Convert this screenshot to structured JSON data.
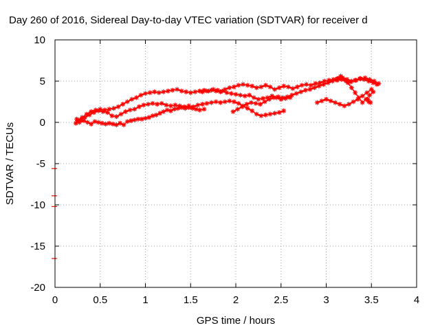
{
  "chart_data": {
    "type": "scatter",
    "title": "Day 260 of 2016, Sidereal Day-to-day VTEC variation (SDTVAR) for receiver d",
    "xlabel": "GPS time / hours",
    "ylabel": "SDTVAR / TECUs",
    "xlim": [
      0,
      4
    ],
    "ylim": [
      -20,
      10
    ],
    "xticks": [
      0,
      0.5,
      1,
      1.5,
      2,
      2.5,
      3,
      3.5,
      4
    ],
    "yticks": [
      -20,
      -15,
      -10,
      -5,
      0,
      5,
      10
    ],
    "grid": true,
    "grid_style": "dotted",
    "marker": "star",
    "series_color": "#ff0000",
    "series": [
      {
        "name": "",
        "x": [
          0.23,
          0.27,
          0.32,
          0.36,
          0.4,
          0.44,
          0.48,
          0.52,
          0.56,
          0.6,
          0.64,
          0.68,
          0.72,
          0.76,
          0.8,
          0.84,
          0.88,
          0.92,
          0.96,
          1.0,
          1.04,
          1.08,
          1.12,
          1.16,
          1.2,
          1.24,
          1.28,
          1.32,
          1.36,
          1.4,
          1.44,
          1.48,
          1.52,
          1.56,
          1.6,
          1.65
        ],
        "y": [
          -0.1,
          0.0,
          0.2,
          0.0,
          -0.2,
          0.1,
          0.0,
          -0.1,
          -0.2,
          -0.1,
          -0.2,
          -0.3,
          -0.1,
          -0.3,
          0.1,
          0.2,
          0.3,
          0.4,
          0.4,
          0.5,
          0.6,
          0.8,
          0.9,
          1.1,
          1.3,
          1.5,
          1.4,
          1.6,
          1.7,
          1.8,
          1.7,
          1.8,
          1.7,
          1.6,
          1.5,
          1.6
        ]
      },
      {
        "name": "",
        "x": [
          0.24,
          0.28,
          0.33,
          0.38,
          0.43,
          0.48,
          0.53,
          0.58,
          0.63,
          0.68,
          0.73,
          0.78,
          0.83,
          0.88,
          0.93,
          0.98,
          1.03,
          1.08,
          1.13,
          1.18,
          1.23,
          1.28,
          1.33,
          1.38,
          1.43,
          1.48,
          1.53,
          1.58,
          1.63,
          1.68,
          1.73,
          1.78,
          1.83,
          1.88,
          1.93,
          1.98,
          2.03,
          2.08,
          2.13,
          2.18,
          2.23,
          2.28,
          2.33,
          2.38,
          2.43,
          2.48,
          2.53
        ],
        "y": [
          0.4,
          0.3,
          0.6,
          0.9,
          1.2,
          1.4,
          1.3,
          1.2,
          0.8,
          0.7,
          1.0,
          1.3,
          1.5,
          1.6,
          1.9,
          2.1,
          2.2,
          2.3,
          2.2,
          2.3,
          2.1,
          2.0,
          2.1,
          2.0,
          1.9,
          2.0,
          1.9,
          2.1,
          2.2,
          2.3,
          2.4,
          2.5,
          2.4,
          2.5,
          2.6,
          2.5,
          2.3,
          2.0,
          1.7,
          1.4,
          1.0,
          0.8,
          0.9,
          1.0,
          1.1,
          1.2,
          1.4
        ]
      },
      {
        "name": "",
        "x": [
          0.25,
          0.3,
          0.35,
          0.4,
          0.45,
          0.5,
          0.55,
          0.6,
          0.65,
          0.7,
          0.75,
          0.8,
          0.85,
          0.9,
          0.95,
          1.0,
          1.05,
          1.1,
          1.15,
          1.2,
          1.25,
          1.3,
          1.35,
          1.4,
          1.45,
          1.5,
          1.55,
          1.6,
          1.65,
          1.7,
          1.75,
          1.8,
          1.85,
          1.9,
          1.95,
          2.0,
          2.05,
          2.1,
          2.15,
          2.2,
          2.25,
          2.3,
          2.35,
          2.4,
          2.45,
          2.5,
          2.55,
          2.6
        ],
        "y": [
          0.2,
          0.6,
          1.0,
          1.3,
          1.5,
          1.6,
          1.5,
          1.6,
          1.7,
          1.9,
          2.2,
          2.5,
          2.8,
          3.0,
          3.3,
          3.5,
          3.6,
          3.7,
          3.6,
          3.7,
          3.8,
          3.9,
          4.0,
          3.8,
          3.7,
          3.6,
          3.7,
          3.8,
          3.9,
          3.8,
          4.0,
          3.9,
          3.8,
          3.6,
          3.5,
          3.4,
          3.3,
          3.2,
          3.3,
          3.0,
          2.8,
          2.9,
          3.0,
          3.2,
          3.0,
          2.8,
          2.9,
          3.0
        ]
      },
      {
        "name": "",
        "x": [
          1.97,
          2.02,
          2.07,
          2.12,
          2.17,
          2.22,
          2.27,
          2.32,
          2.37,
          2.42,
          2.47,
          2.52,
          2.57,
          2.62,
          2.67,
          2.72,
          2.77,
          2.82,
          2.87,
          2.92,
          2.97,
          3.02,
          3.07,
          3.12,
          3.17,
          3.22,
          3.27,
          3.32,
          3.37,
          3.42,
          3.47,
          3.52,
          3.56
        ],
        "y": [
          1.3,
          1.6,
          1.9,
          2.2,
          2.4,
          2.3,
          2.2,
          2.5,
          2.8,
          3.0,
          3.1,
          3.0,
          3.1,
          3.3,
          3.5,
          3.7,
          3.9,
          4.0,
          4.2,
          4.4,
          4.6,
          4.8,
          5.0,
          5.1,
          5.2,
          5.0,
          4.9,
          5.1,
          5.3,
          5.2,
          5.0,
          4.8,
          4.6
        ]
      },
      {
        "name": "",
        "x": [
          1.63,
          1.68,
          1.73,
          1.78,
          1.83,
          1.88,
          1.93,
          1.98,
          2.03,
          2.08,
          2.13,
          2.18,
          2.23,
          2.28,
          2.33,
          2.38,
          2.43,
          2.48,
          2.53,
          2.58,
          2.63,
          2.68,
          2.73,
          2.78,
          2.83,
          2.88,
          2.93,
          2.98,
          3.03,
          3.08,
          3.13,
          3.18,
          3.23,
          3.28,
          3.33,
          3.38,
          3.43,
          3.48,
          3.53,
          3.58
        ],
        "y": [
          3.7,
          3.8,
          3.9,
          3.8,
          3.7,
          4.0,
          4.2,
          4.3,
          4.5,
          4.6,
          4.5,
          4.4,
          4.2,
          4.3,
          4.5,
          4.3,
          4.0,
          4.2,
          4.4,
          4.3,
          4.1,
          4.3,
          4.5,
          4.6,
          4.5,
          4.7,
          4.8,
          5.0,
          5.1,
          5.2,
          5.3,
          5.4,
          5.2,
          5.0,
          5.1,
          5.3,
          5.4,
          5.2,
          5.0,
          4.7
        ]
      },
      {
        "name": "",
        "x": [
          2.9,
          2.95,
          3.0,
          3.05,
          3.1,
          3.15,
          3.2,
          3.25,
          3.3,
          3.35,
          3.4,
          3.45,
          3.5,
          3.52,
          3.48,
          3.44,
          3.4,
          3.36,
          3.32,
          3.28,
          3.24,
          3.2,
          3.16,
          3.12
        ],
        "y": [
          2.4,
          2.6,
          2.8,
          2.6,
          2.4,
          2.2,
          2.0,
          2.2,
          2.5,
          2.8,
          3.2,
          3.6,
          4.0,
          3.7,
          3.3,
          2.8,
          2.4,
          3.0,
          3.6,
          4.2,
          4.8,
          5.2,
          5.6,
          5.3
        ]
      },
      {
        "name": "",
        "x": [
          3.46,
          3.47,
          3.49
        ],
        "y": [
          2.8,
          2.5,
          2.4
        ]
      }
    ],
    "edge_marks_y": [
      -5.6,
      -8.9,
      -10.2,
      -16.5
    ]
  }
}
